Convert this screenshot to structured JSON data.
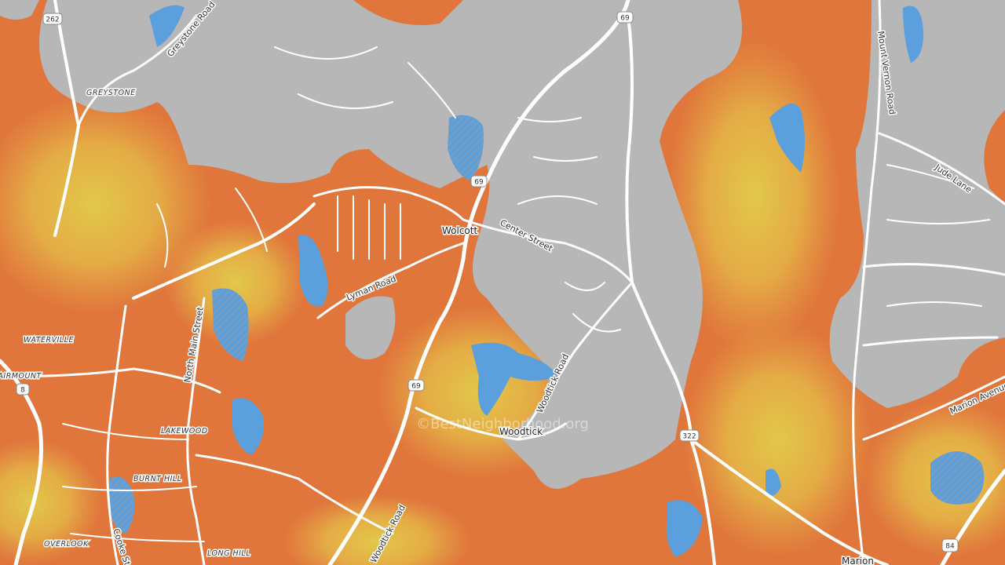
{
  "labels": {
    "route_262": "262",
    "greystone": "GREYSTONE",
    "greystone_road": "Greystone Road",
    "route_69_top": "69",
    "mount_vernon_road": "Mount Vernon Road",
    "jude_lane": "Jude Lane",
    "route_69_mid": "69",
    "center_street": "Center Street",
    "wolcott": "Wolcott",
    "lyman_road": "Lyman Road",
    "north_main_street": "North Main Street",
    "waterville": "WATERVILLE",
    "fairmount": "FAIRMOUNT",
    "route_8": "8",
    "route_69_low": "69",
    "woodtick_road_upper": "Woodtick Road",
    "woodtick": "Woodtick",
    "lakewood": "LAKEWOOD",
    "burnt_hill": "BURNT HILL",
    "overlook": "OVERLOOK",
    "long_hill": "LONG HILL",
    "cooke_street": "Cooke St",
    "woodtick_road_lower": "Woodtick Road",
    "route_322": "322",
    "marion_avenue": "Marion Avenue",
    "marion": "Marion",
    "route_84": "84"
  },
  "watermark": "©BestNeighborhood.org"
}
